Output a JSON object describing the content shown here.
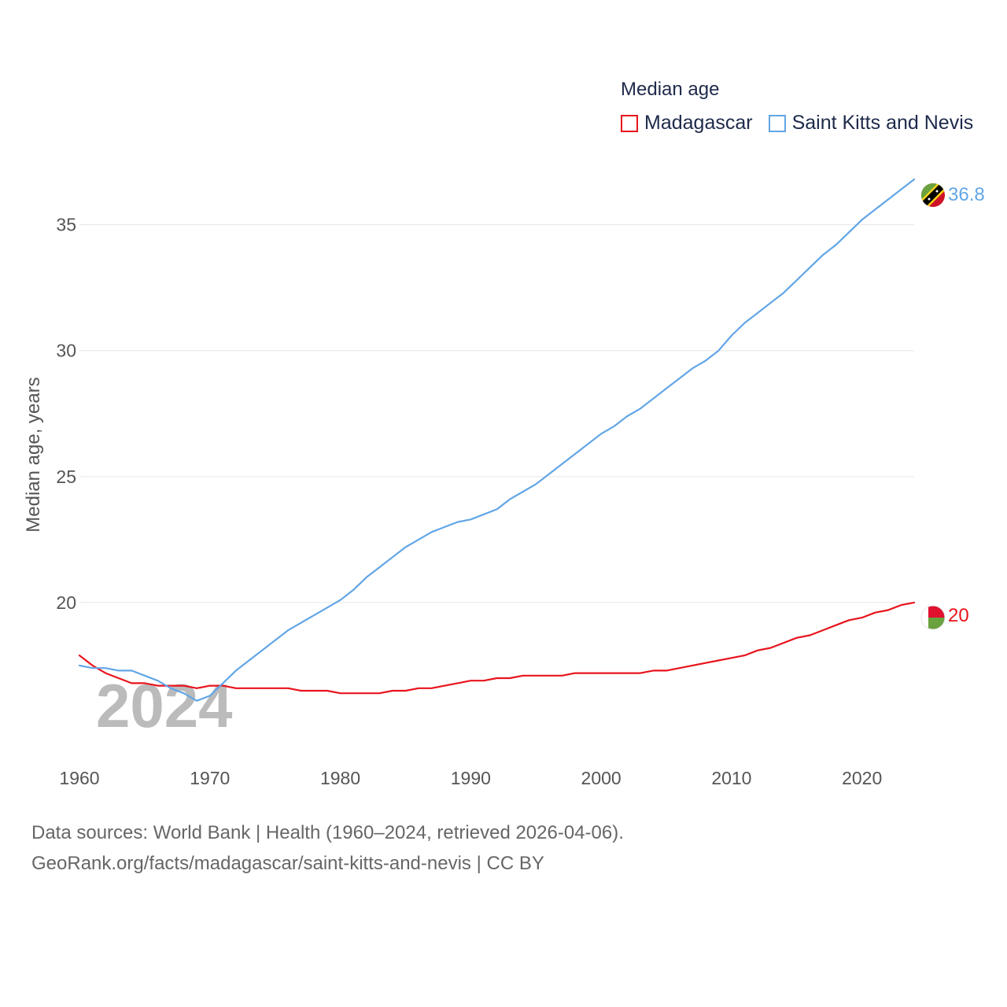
{
  "legend": {
    "title": "Median age",
    "items": [
      {
        "name": "Madagascar",
        "color": "#e8141c"
      },
      {
        "name": "Saint Kitts and Nevis",
        "color": "#62a6e6"
      }
    ]
  },
  "footer": {
    "line1": "Data sources: World Bank | Health (1960–2024, retrieved 2026-04-06).",
    "line2": "GeoRank.org/facts/madagascar/saint-kitts-and-nevis | CC BY"
  },
  "chart_data": {
    "type": "line",
    "title": "Median age",
    "xlabel": "",
    "ylabel": "Median age, years",
    "year_watermark": "2024",
    "x": [
      1960,
      1961,
      1962,
      1963,
      1964,
      1965,
      1966,
      1967,
      1968,
      1969,
      1970,
      1971,
      1972,
      1973,
      1974,
      1975,
      1976,
      1977,
      1978,
      1979,
      1980,
      1981,
      1982,
      1983,
      1984,
      1985,
      1986,
      1987,
      1988,
      1989,
      1990,
      1991,
      1992,
      1993,
      1994,
      1995,
      1996,
      1997,
      1998,
      1999,
      2000,
      2001,
      2002,
      2003,
      2004,
      2005,
      2006,
      2007,
      2008,
      2009,
      2010,
      2011,
      2012,
      2013,
      2014,
      2015,
      2016,
      2017,
      2018,
      2019,
      2020,
      2021,
      2022,
      2023,
      2024
    ],
    "xlim": [
      1960,
      2024
    ],
    "ylim": [
      14.5,
      38.3
    ],
    "x_ticks": [
      1960,
      1970,
      1980,
      1990,
      2000,
      2010,
      2020
    ],
    "y_ticks": [
      20,
      25,
      30,
      35
    ],
    "grid": true,
    "series": [
      {
        "name": "Madagascar",
        "color": "#e8141c",
        "end_label": "20",
        "values": [
          17.9,
          17.5,
          17.2,
          17.0,
          16.8,
          16.8,
          16.7,
          16.7,
          16.7,
          16.6,
          16.7,
          16.7,
          16.6,
          16.6,
          16.6,
          16.6,
          16.6,
          16.5,
          16.5,
          16.5,
          16.4,
          16.4,
          16.4,
          16.4,
          16.5,
          16.5,
          16.6,
          16.6,
          16.7,
          16.8,
          16.9,
          16.9,
          17.0,
          17.0,
          17.1,
          17.1,
          17.1,
          17.1,
          17.2,
          17.2,
          17.2,
          17.2,
          17.2,
          17.2,
          17.3,
          17.3,
          17.4,
          17.5,
          17.6,
          17.7,
          17.8,
          17.9,
          18.1,
          18.2,
          18.4,
          18.6,
          18.7,
          18.9,
          19.1,
          19.3,
          19.4,
          19.6,
          19.7,
          19.9,
          20.0
        ]
      },
      {
        "name": "Saint Kitts and Nevis",
        "color": "#62a6e6",
        "end_label": "36.8",
        "values": [
          17.5,
          17.4,
          17.4,
          17.3,
          17.3,
          17.1,
          16.9,
          16.6,
          16.4,
          16.1,
          16.3,
          16.8,
          17.3,
          17.7,
          18.1,
          18.5,
          18.9,
          19.2,
          19.5,
          19.8,
          20.1,
          20.5,
          21.0,
          21.4,
          21.8,
          22.2,
          22.5,
          22.8,
          23.0,
          23.2,
          23.3,
          23.5,
          23.7,
          24.1,
          24.4,
          24.7,
          25.1,
          25.5,
          25.9,
          26.3,
          26.7,
          27.0,
          27.4,
          27.7,
          28.1,
          28.5,
          28.9,
          29.3,
          29.6,
          30.0,
          30.6,
          31.1,
          31.5,
          31.9,
          32.3,
          32.8,
          33.3,
          33.8,
          34.2,
          34.7,
          35.2,
          35.6,
          36.0,
          36.4,
          36.8
        ]
      }
    ]
  }
}
